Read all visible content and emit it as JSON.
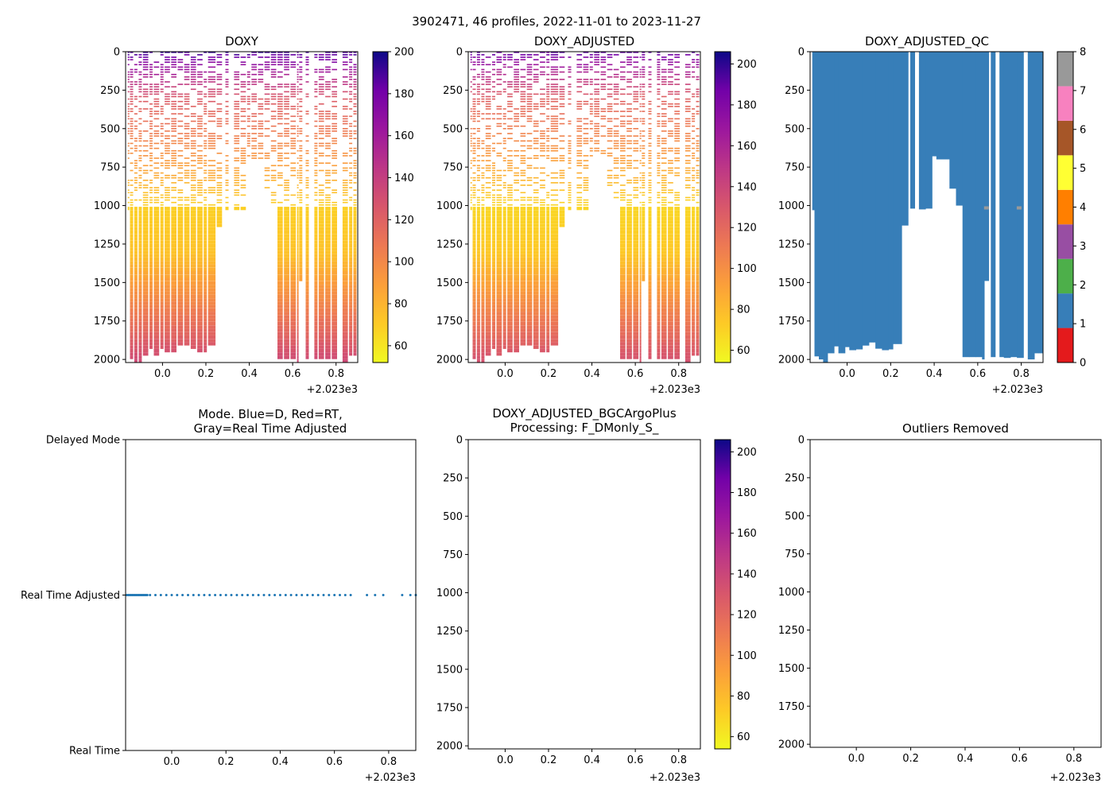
{
  "figure": {
    "suptitle": "3902471, 46 profiles, 2022-11-01 to 2023-11-27",
    "x_offset_label": "+2.023e3",
    "x_ticks": [
      "0.0",
      "0.2",
      "0.4",
      "0.6",
      "0.8"
    ],
    "x_range": [
      -0.17,
      0.9
    ],
    "depth_ticks": [
      "0",
      "250",
      "500",
      "750",
      "1000",
      "1250",
      "1500",
      "1750",
      "2000"
    ],
    "depth_range": [
      0,
      2020
    ]
  },
  "colors": {
    "qc_blue": "#377eb8",
    "qc_gray": "#999999",
    "mode_dots": "#1f77b4"
  },
  "chart_data": [
    {
      "id": "doxy",
      "type": "heatmap",
      "title": "DOXY",
      "colormap": "plasma_r",
      "xlabel": "",
      "ylabel": "",
      "colorbar": {
        "range": [
          52,
          200
        ],
        "ticks": [
          "60",
          "80",
          "100",
          "120",
          "140",
          "160",
          "180",
          "200"
        ]
      },
      "series": [
        {
          "name": "DOXY",
          "description": "oxygen vs time and pressure; ~180 near surface, ~65 at 1000-1300 dbar, ~130 near 2000 dbar"
        }
      ]
    },
    {
      "id": "doxy_adjusted",
      "type": "heatmap",
      "title": "DOXY_ADJUSTED",
      "colormap": "plasma_r",
      "colorbar": {
        "range": [
          54,
          206
        ],
        "ticks": [
          "60",
          "80",
          "100",
          "120",
          "140",
          "160",
          "180",
          "200"
        ]
      },
      "series": [
        {
          "name": "DOXY_ADJUSTED"
        }
      ]
    },
    {
      "id": "doxy_adjusted_qc",
      "type": "heatmap",
      "title": "DOXY_ADJUSTED_QC",
      "colormap": "Set1 (QC flags)",
      "colorbar": {
        "range": [
          0,
          8
        ],
        "ticks": [
          "0",
          "1",
          "2",
          "3",
          "4",
          "5",
          "6",
          "7",
          "8"
        ],
        "bands": [
          "#e41a1c",
          "#377eb8",
          "#4daf4a",
          "#984ea3",
          "#ff7f00",
          "#ffff33",
          "#a65628",
          "#f781bf",
          "#999999"
        ]
      },
      "profile_bottoms": [
        {
          "x": -0.16,
          "bottom": 1030
        },
        {
          "x": -0.15,
          "bottom": 1980
        },
        {
          "x": -0.13,
          "bottom": 2000
        },
        {
          "x": -0.11,
          "bottom": 2020
        },
        {
          "x": -0.09,
          "bottom": 1960
        },
        {
          "x": -0.06,
          "bottom": 1915
        },
        {
          "x": -0.04,
          "bottom": 1960
        },
        {
          "x": -0.01,
          "bottom": 1920
        },
        {
          "x": 0.01,
          "bottom": 1940
        },
        {
          "x": 0.04,
          "bottom": 1935
        },
        {
          "x": 0.07,
          "bottom": 1910
        },
        {
          "x": 0.1,
          "bottom": 1890
        },
        {
          "x": 0.13,
          "bottom": 1930
        },
        {
          "x": 0.16,
          "bottom": 1940
        },
        {
          "x": 0.19,
          "bottom": 1935
        },
        {
          "x": 0.21,
          "bottom": 1900
        },
        {
          "x": 0.25,
          "bottom": 1130
        },
        {
          "x": 0.28,
          "bottom": 0
        },
        {
          "x": 0.29,
          "bottom": 1020
        },
        {
          "x": 0.31,
          "bottom": 0
        },
        {
          "x": 0.33,
          "bottom": 1025
        },
        {
          "x": 0.36,
          "bottom": 1020
        },
        {
          "x": 0.39,
          "bottom": 680
        },
        {
          "x": 0.41,
          "bottom": 700
        },
        {
          "x": 0.44,
          "bottom": 700
        },
        {
          "x": 0.47,
          "bottom": 890
        },
        {
          "x": 0.5,
          "bottom": 1000
        },
        {
          "x": 0.53,
          "bottom": 1985
        },
        {
          "x": 0.56,
          "bottom": 1985
        },
        {
          "x": 0.59,
          "bottom": 1985
        },
        {
          "x": 0.62,
          "bottom": 2000
        },
        {
          "x": 0.63,
          "bottom": 1490
        },
        {
          "x": 0.65,
          "bottom": 0
        },
        {
          "x": 0.66,
          "bottom": 1985
        },
        {
          "x": 0.68,
          "bottom": 0
        },
        {
          "x": 0.7,
          "bottom": 1985
        },
        {
          "x": 0.72,
          "bottom": 1990
        },
        {
          "x": 0.75,
          "bottom": 1985
        },
        {
          "x": 0.78,
          "bottom": 1990
        },
        {
          "x": 0.81,
          "bottom": 0
        },
        {
          "x": 0.83,
          "bottom": 2000
        },
        {
          "x": 0.86,
          "bottom": 1960
        },
        {
          "x": 0.88,
          "bottom": 1960
        }
      ],
      "flag8_points": [
        {
          "x": 0.64,
          "depth": 1015
        },
        {
          "x": 0.79,
          "depth": 1015
        }
      ]
    },
    {
      "id": "mode",
      "type": "scatter",
      "title": "Mode. Blue=D, Red=RT,",
      "title_line2": "Gray=Real Time Adjusted",
      "y_categories": [
        "Real Time",
        "Real Time Adjusted",
        "Delayed Mode"
      ],
      "points_y": "Real Time Adjusted",
      "x": [
        -0.165,
        -0.16,
        -0.155,
        -0.15,
        -0.145,
        -0.14,
        -0.135,
        -0.13,
        -0.125,
        -0.12,
        -0.115,
        -0.11,
        -0.105,
        -0.1,
        -0.095,
        -0.09,
        -0.08,
        -0.06,
        -0.04,
        -0.02,
        0.0,
        0.02,
        0.04,
        0.06,
        0.08,
        0.1,
        0.12,
        0.14,
        0.16,
        0.18,
        0.2,
        0.22,
        0.24,
        0.26,
        0.28,
        0.3,
        0.32,
        0.34,
        0.36,
        0.38,
        0.4,
        0.42,
        0.44,
        0.46,
        0.48,
        0.5,
        0.52,
        0.54,
        0.56,
        0.58,
        0.6,
        0.62,
        0.64,
        0.66,
        0.72,
        0.75,
        0.78,
        0.85,
        0.88,
        0.9
      ]
    },
    {
      "id": "bgcargoplus",
      "type": "heatmap",
      "title": "DOXY_ADJUSTED_BGCArgoPlus",
      "title_line2": "Processing: F_DMonly_S_",
      "colormap": "plasma_r",
      "colorbar": {
        "range": [
          54,
          206
        ],
        "ticks": [
          "60",
          "80",
          "100",
          "120",
          "140",
          "160",
          "180",
          "200"
        ]
      },
      "series": []
    },
    {
      "id": "outliers",
      "type": "heatmap",
      "title": "Outliers Removed",
      "series": []
    }
  ]
}
